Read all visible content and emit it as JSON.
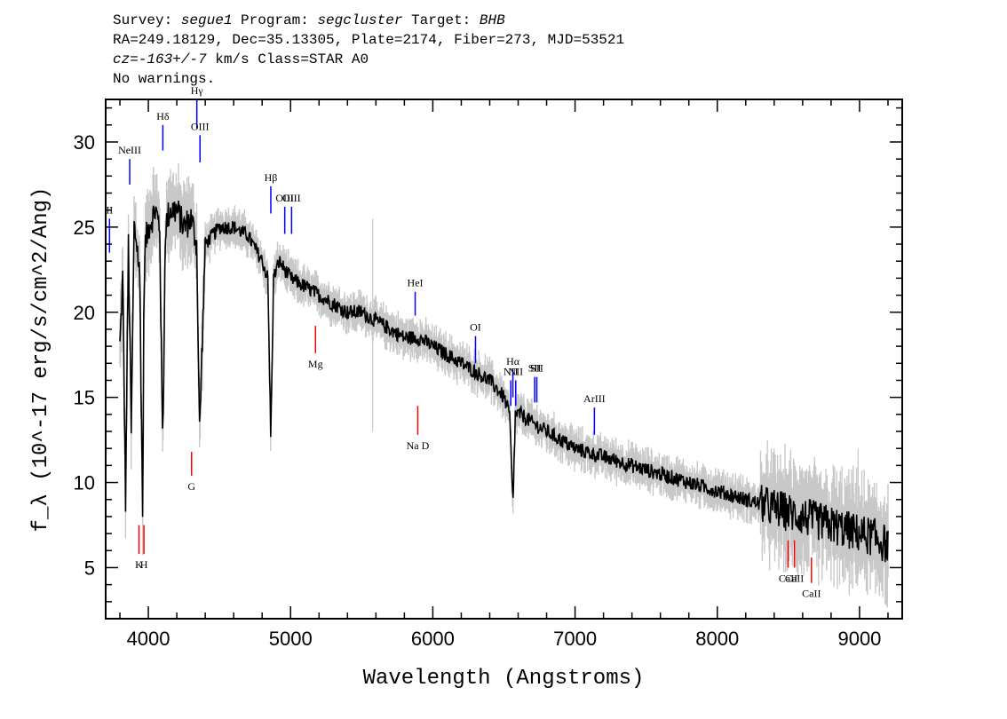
{
  "header": {
    "l1_survey_key": "Survey: ",
    "l1_survey_val": "segue1",
    "l1_program_key": " Program: ",
    "l1_program_val": "segcluster",
    "l1_target_key": " Target: ",
    "l1_target_val": "BHB",
    "line2": "RA=249.18129, Dec=35.13305, Plate=2174, Fiber=273, MJD=53521",
    "l3_cz_val": "cz=-163+/-7",
    "l3_rest": " km/s Class=STAR A0",
    "line4": "No warnings."
  },
  "chart_data": {
    "type": "line",
    "xlabel": "Wavelength (Angstroms)",
    "ylabel": "f_λ (10^-17 erg/s/cm^2/Ang)",
    "xlim": [
      3700,
      9300
    ],
    "ylim": [
      2,
      32.5
    ],
    "x_ticks": [
      4000,
      5000,
      6000,
      7000,
      8000,
      9000
    ],
    "y_ticks": [
      5,
      10,
      15,
      20,
      25,
      30
    ],
    "colors": {
      "flux": "#000000",
      "error_band": "#c8c8c8",
      "emission": "#0000ff",
      "absorption": "#ff0000"
    },
    "series": [
      {
        "x": [
          3800,
          3820,
          3840,
          3860,
          3880,
          3900,
          3920,
          3940,
          3960,
          3970,
          3980,
          4000,
          4050,
          4080,
          4101,
          4120,
          4150,
          4200,
          4250,
          4300,
          4340,
          4360,
          4400,
          4500,
          4600,
          4700,
          4800,
          4840,
          4861,
          4880,
          4920,
          4960,
          5000,
          5100,
          5200,
          5300,
          5400,
          5500,
          5600,
          5700,
          5800,
          5900,
          6000,
          6100,
          6200,
          6300,
          6400,
          6500,
          6540,
          6563,
          6580,
          6620,
          6700,
          6800,
          6900,
          7000,
          7200,
          7400,
          7600,
          7800,
          8000,
          8200,
          8400,
          8600,
          8800,
          9000,
          9100,
          9200
        ],
        "y": [
          18,
          22,
          9,
          24,
          13,
          25,
          24,
          22,
          8,
          22,
          24,
          25,
          26,
          25,
          12,
          25,
          26,
          26,
          25,
          25.5,
          24,
          13,
          24,
          25,
          25,
          24.5,
          23,
          22,
          12.5,
          22,
          23,
          22.5,
          22,
          21.5,
          21,
          20.5,
          20,
          20,
          19.5,
          19,
          18.5,
          18.5,
          18,
          17.5,
          17,
          16.5,
          16,
          15,
          14,
          8.6,
          14,
          14,
          13.5,
          13,
          12.5,
          12,
          11.5,
          11,
          10.5,
          10,
          9.5,
          9,
          8.5,
          8,
          7.5,
          7,
          6.8,
          6.3
        ]
      }
    ],
    "emission_lines": [
      {
        "label": "II",
        "wavelength": 3727,
        "mark_y": [
          23.5,
          25.5
        ]
      },
      {
        "label": "NeIII",
        "wavelength": 3869,
        "mark_y": [
          27.5,
          29
        ]
      },
      {
        "label": "Hδ",
        "wavelength": 4102,
        "mark_y": [
          29.5,
          31
        ]
      },
      {
        "label": "Hγ",
        "wavelength": 4341,
        "mark_y": [
          30.8,
          32.5
        ]
      },
      {
        "label": "OIII",
        "wavelength": 4363,
        "mark_y": [
          28.8,
          30.4
        ]
      },
      {
        "label": "Hβ",
        "wavelength": 4861,
        "mark_y": [
          25.8,
          27.4
        ]
      },
      {
        "label": "OIII",
        "wavelength": 4959,
        "mark_y": [
          24.6,
          26.2
        ]
      },
      {
        "label": "OIII",
        "wavelength": 5007,
        "mark_y": [
          24.6,
          26.2
        ]
      },
      {
        "label": "HeI",
        "wavelength": 5876,
        "mark_y": [
          19.8,
          21.2
        ]
      },
      {
        "label": "OI",
        "wavelength": 6300,
        "mark_y": [
          17,
          18.6
        ]
      },
      {
        "label": "NII",
        "wavelength": 6548,
        "mark_y": [
          14.5,
          16
        ]
      },
      {
        "label": "Hα",
        "wavelength": 6563,
        "mark_y": [
          15,
          16.6
        ]
      },
      {
        "label": "NII",
        "wavelength": 6583,
        "mark_y": [
          14.5,
          16
        ]
      },
      {
        "label": "SII",
        "wavelength": 6716,
        "mark_y": [
          14.7,
          16.2
        ]
      },
      {
        "label": "SII",
        "wavelength": 6731,
        "mark_y": [
          14.7,
          16.2
        ]
      },
      {
        "label": "ArIII",
        "wavelength": 7136,
        "mark_y": [
          12.8,
          14.4
        ]
      }
    ],
    "absorption_lines": [
      {
        "label": "K",
        "wavelength": 3934,
        "mark_y": [
          5.8,
          7.5
        ]
      },
      {
        "label": "H",
        "wavelength": 3969,
        "mark_y": [
          5.8,
          7.5
        ]
      },
      {
        "label": "G",
        "wavelength": 4304,
        "mark_y": [
          10.4,
          11.8
        ]
      },
      {
        "label": "Mg",
        "wavelength": 5175,
        "mark_y": [
          17.6,
          19.2
        ]
      },
      {
        "label": "Na D",
        "wavelength": 5894,
        "mark_y": [
          12.8,
          14.5
        ]
      },
      {
        "label": "CaII",
        "wavelength": 8498,
        "mark_y": [
          5,
          6.6
        ]
      },
      {
        "label": "CaII",
        "wavelength": 8542,
        "mark_y": [
          5,
          6.6
        ]
      },
      {
        "label": "CaII",
        "wavelength": 8662,
        "mark_y": [
          4.1,
          5.6
        ]
      }
    ]
  }
}
